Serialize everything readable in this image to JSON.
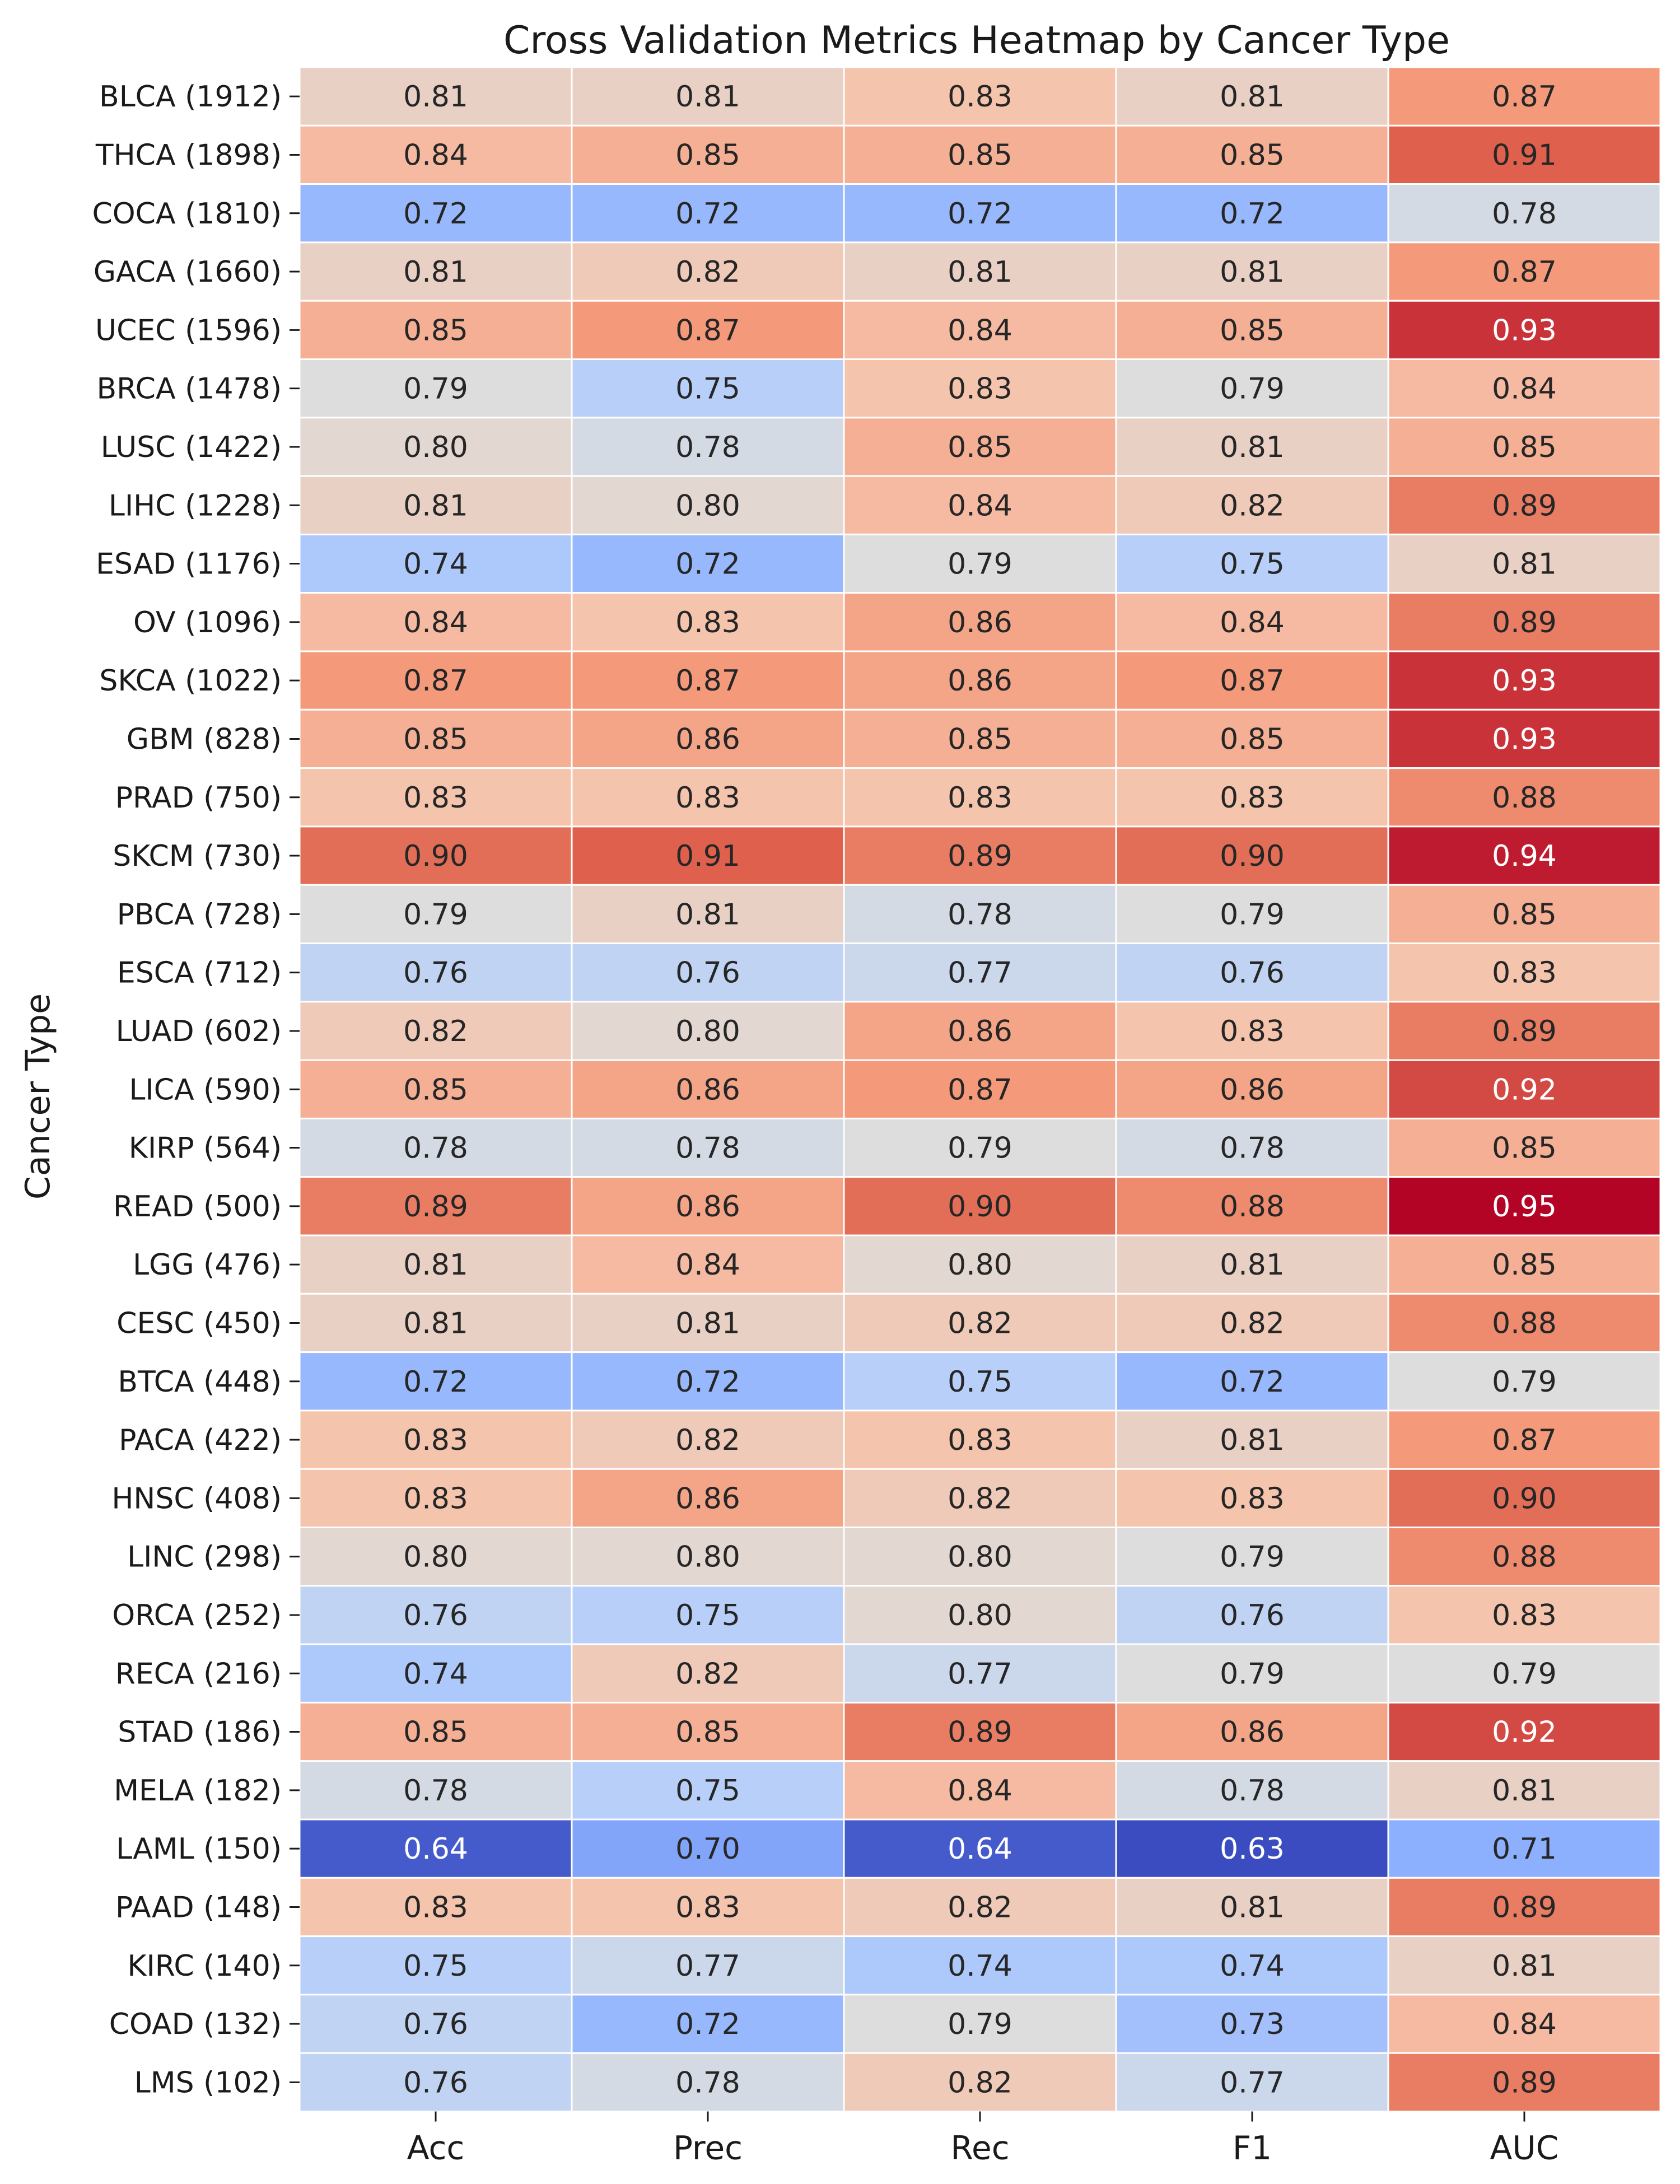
{
  "chart_data": {
    "type": "heatmap",
    "title": "Cross Validation Metrics Heatmap by Cancer Type",
    "xlabel": "",
    "ylabel": "Cancer Type",
    "colormap": "coolwarm",
    "color_range": [
      0.63,
      0.95
    ],
    "columns": [
      "Acc",
      "Prec",
      "Rec",
      "F1",
      "AUC"
    ],
    "rows": [
      "BLCA (1912)",
      "THCA (1898)",
      "COCA (1810)",
      "GACA (1660)",
      "UCEC (1596)",
      "BRCA (1478)",
      "LUSC (1422)",
      "LIHC (1228)",
      "ESAD (1176)",
      "OV (1096)",
      "SKCA (1022)",
      "GBM (828)",
      "PRAD (750)",
      "SKCM (730)",
      "PBCA (728)",
      "ESCA (712)",
      "LUAD (602)",
      "LICA (590)",
      "KIRP (564)",
      "READ (500)",
      "LGG (476)",
      "CESC (450)",
      "BTCA (448)",
      "PACA (422)",
      "HNSC (408)",
      "LINC (298)",
      "ORCA (252)",
      "RECA (216)",
      "STAD (186)",
      "MELA (182)",
      "LAML (150)",
      "PAAD (148)",
      "KIRC (140)",
      "COAD (132)",
      "LMS (102)"
    ],
    "values": [
      [
        0.81,
        0.81,
        0.83,
        0.81,
        0.87
      ],
      [
        0.84,
        0.85,
        0.85,
        0.85,
        0.91
      ],
      [
        0.72,
        0.72,
        0.72,
        0.72,
        0.78
      ],
      [
        0.81,
        0.82,
        0.81,
        0.81,
        0.87
      ],
      [
        0.85,
        0.87,
        0.84,
        0.85,
        0.93
      ],
      [
        0.79,
        0.75,
        0.83,
        0.79,
        0.84
      ],
      [
        0.8,
        0.78,
        0.85,
        0.81,
        0.85
      ],
      [
        0.81,
        0.8,
        0.84,
        0.82,
        0.89
      ],
      [
        0.74,
        0.72,
        0.79,
        0.75,
        0.81
      ],
      [
        0.84,
        0.83,
        0.86,
        0.84,
        0.89
      ],
      [
        0.87,
        0.87,
        0.86,
        0.87,
        0.93
      ],
      [
        0.85,
        0.86,
        0.85,
        0.85,
        0.93
      ],
      [
        0.83,
        0.83,
        0.83,
        0.83,
        0.88
      ],
      [
        0.9,
        0.91,
        0.89,
        0.9,
        0.94
      ],
      [
        0.79,
        0.81,
        0.78,
        0.79,
        0.85
      ],
      [
        0.76,
        0.76,
        0.77,
        0.76,
        0.83
      ],
      [
        0.82,
        0.8,
        0.86,
        0.83,
        0.89
      ],
      [
        0.85,
        0.86,
        0.87,
        0.86,
        0.92
      ],
      [
        0.78,
        0.78,
        0.79,
        0.78,
        0.85
      ],
      [
        0.89,
        0.86,
        0.9,
        0.88,
        0.95
      ],
      [
        0.81,
        0.84,
        0.8,
        0.81,
        0.85
      ],
      [
        0.81,
        0.81,
        0.82,
        0.82,
        0.88
      ],
      [
        0.72,
        0.72,
        0.75,
        0.72,
        0.79
      ],
      [
        0.83,
        0.82,
        0.83,
        0.81,
        0.87
      ],
      [
        0.83,
        0.86,
        0.82,
        0.83,
        0.9
      ],
      [
        0.8,
        0.8,
        0.8,
        0.79,
        0.88
      ],
      [
        0.76,
        0.75,
        0.8,
        0.76,
        0.83
      ],
      [
        0.74,
        0.82,
        0.77,
        0.79,
        0.79
      ],
      [
        0.85,
        0.85,
        0.89,
        0.86,
        0.92
      ],
      [
        0.78,
        0.75,
        0.84,
        0.78,
        0.81
      ],
      [
        0.64,
        0.7,
        0.64,
        0.63,
        0.71
      ],
      [
        0.83,
        0.83,
        0.82,
        0.81,
        0.89
      ],
      [
        0.75,
        0.77,
        0.74,
        0.74,
        0.81
      ],
      [
        0.76,
        0.72,
        0.79,
        0.73,
        0.84
      ],
      [
        0.76,
        0.78,
        0.82,
        0.77,
        0.89
      ]
    ],
    "value_labels": [
      [
        "0.81",
        "0.81",
        "0.83",
        "0.81",
        "0.87"
      ],
      [
        "0.84",
        "0.85",
        "0.85",
        "0.85",
        "0.91"
      ],
      [
        "0.72",
        "0.72",
        "0.72",
        "0.72",
        "0.78"
      ],
      [
        "0.81",
        "0.82",
        "0.81",
        "0.81",
        "0.87"
      ],
      [
        "0.85",
        "0.87",
        "0.84",
        "0.85",
        "0.93"
      ],
      [
        "0.79",
        "0.75",
        "0.83",
        "0.79",
        "0.84"
      ],
      [
        "0.80",
        "0.78",
        "0.85",
        "0.81",
        "0.85"
      ],
      [
        "0.81",
        "0.80",
        "0.84",
        "0.82",
        "0.89"
      ],
      [
        "0.74",
        "0.72",
        "0.79",
        "0.75",
        "0.81"
      ],
      [
        "0.84",
        "0.83",
        "0.86",
        "0.84",
        "0.89"
      ],
      [
        "0.87",
        "0.87",
        "0.86",
        "0.87",
        "0.93"
      ],
      [
        "0.85",
        "0.86",
        "0.85",
        "0.85",
        "0.93"
      ],
      [
        "0.83",
        "0.83",
        "0.83",
        "0.83",
        "0.88"
      ],
      [
        "0.90",
        "0.91",
        "0.89",
        "0.90",
        "0.94"
      ],
      [
        "0.79",
        "0.81",
        "0.78",
        "0.79",
        "0.85"
      ],
      [
        "0.76",
        "0.76",
        "0.77",
        "0.76",
        "0.83"
      ],
      [
        "0.82",
        "0.80",
        "0.86",
        "0.83",
        "0.89"
      ],
      [
        "0.85",
        "0.86",
        "0.87",
        "0.86",
        "0.92"
      ],
      [
        "0.78",
        "0.78",
        "0.79",
        "0.78",
        "0.85"
      ],
      [
        "0.89",
        "0.86",
        "0.90",
        "0.88",
        "0.95"
      ],
      [
        "0.81",
        "0.84",
        "0.80",
        "0.81",
        "0.85"
      ],
      [
        "0.81",
        "0.81",
        "0.82",
        "0.82",
        "0.88"
      ],
      [
        "0.72",
        "0.72",
        "0.75",
        "0.72",
        "0.79"
      ],
      [
        "0.83",
        "0.82",
        "0.83",
        "0.81",
        "0.87"
      ],
      [
        "0.83",
        "0.86",
        "0.82",
        "0.83",
        "0.90"
      ],
      [
        "0.80",
        "0.80",
        "0.80",
        "0.79",
        "0.88"
      ],
      [
        "0.76",
        "0.75",
        "0.80",
        "0.76",
        "0.83"
      ],
      [
        "0.74",
        "0.82",
        "0.77",
        "0.79",
        "0.79"
      ],
      [
        "0.85",
        "0.85",
        "0.89",
        "0.86",
        "0.92"
      ],
      [
        "0.78",
        "0.75",
        "0.84",
        "0.78",
        "0.81"
      ],
      [
        "0.64",
        "0.70",
        "0.64",
        "0.63",
        "0.71"
      ],
      [
        "0.83",
        "0.83",
        "0.82",
        "0.81",
        "0.89"
      ],
      [
        "0.75",
        "0.77",
        "0.74",
        "0.74",
        "0.81"
      ],
      [
        "0.76",
        "0.72",
        "0.79",
        "0.73",
        "0.84"
      ],
      [
        "0.76",
        "0.78",
        "0.82",
        "0.77",
        "0.89"
      ]
    ],
    "grid": false,
    "legend": "none",
    "colorbar": false
  }
}
